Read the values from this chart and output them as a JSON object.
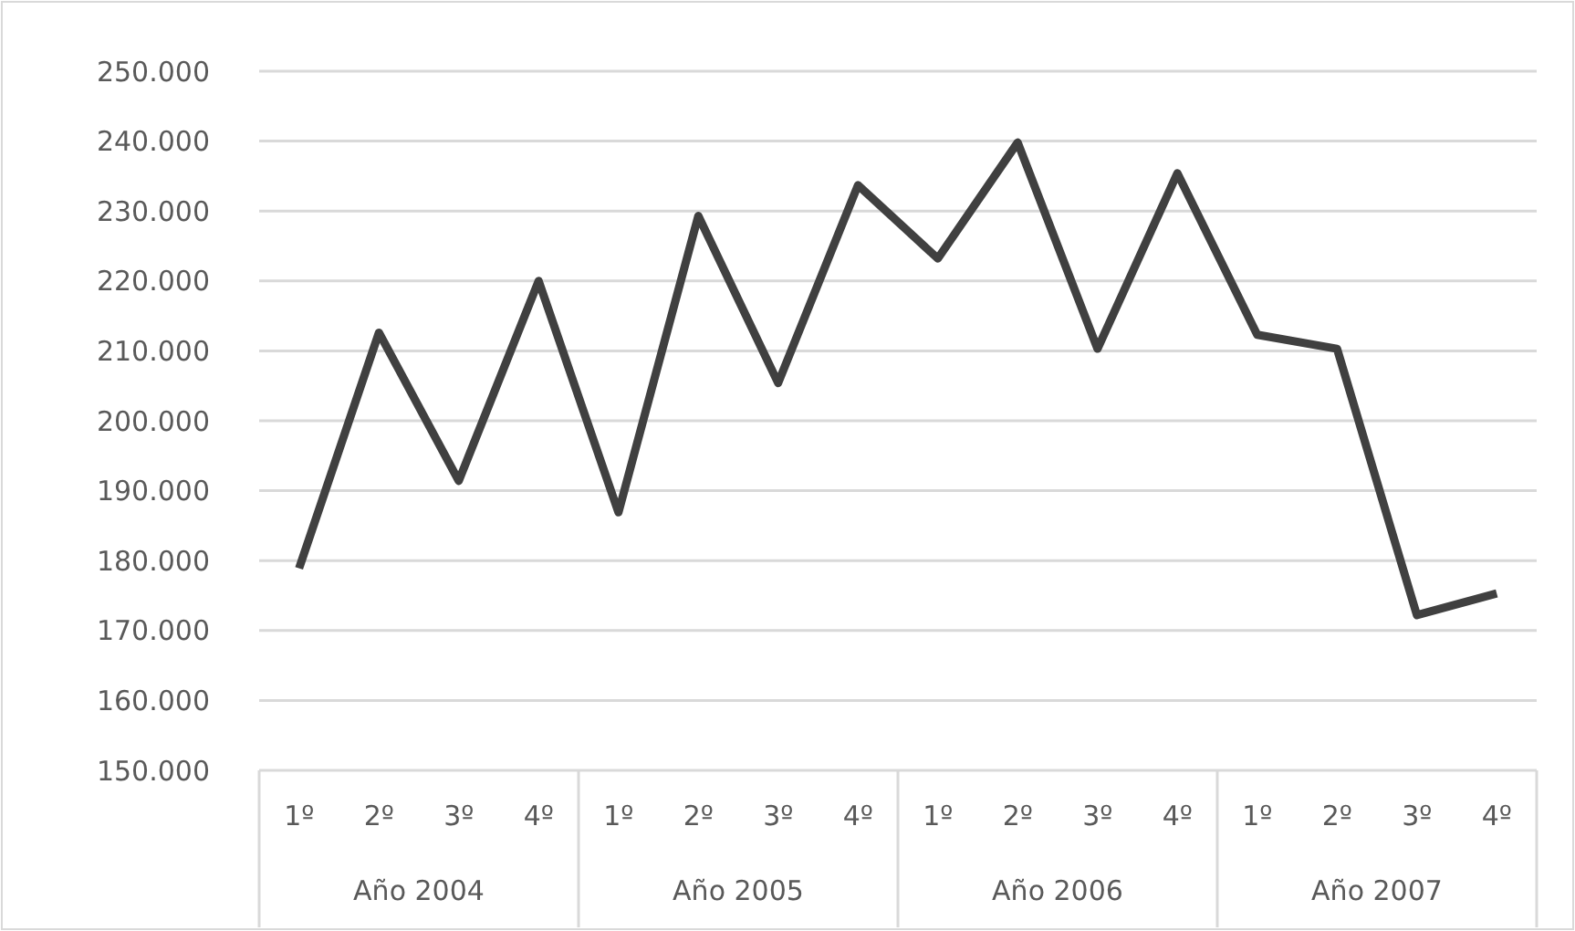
{
  "chart_data": {
    "type": "line",
    "categories": [
      "1º",
      "2º",
      "3º",
      "4º",
      "1º",
      "2º",
      "3º",
      "4º",
      "1º",
      "2º",
      "3º",
      "4º",
      "1º",
      "2º",
      "3º",
      "4º"
    ],
    "series": [
      {
        "color": "#404040",
        "values": [
          178.9,
          212.6,
          191.4,
          220.0,
          186.9,
          229.3,
          205.4,
          233.7,
          223.2,
          239.8,
          210.3,
          235.4,
          212.3,
          210.3,
          172.2,
          175.3
        ]
      }
    ],
    "annotations": [
      "Año 2004",
      "Año 2005",
      "Año 2006",
      "Año 2007"
    ],
    "ylim": [
      150,
      250
    ],
    "yticks": [
      {
        "value": 150,
        "label": "150.000"
      },
      {
        "value": 160,
        "label": "160.000"
      },
      {
        "value": 170,
        "label": "170.000"
      },
      {
        "value": 180,
        "label": "180.000"
      },
      {
        "value": 190,
        "label": "190.000"
      },
      {
        "value": 200,
        "label": "200.000"
      },
      {
        "value": 210,
        "label": "210.000"
      },
      {
        "value": 220,
        "label": "220.000"
      },
      {
        "value": 230,
        "label": "230.000"
      },
      {
        "value": 240,
        "label": "240.000"
      },
      {
        "value": 250,
        "label": "250.000"
      }
    ],
    "grid": "y",
    "marker": "none",
    "line_style": "solid"
  }
}
